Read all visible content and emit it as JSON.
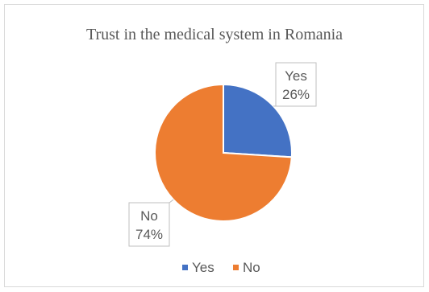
{
  "chart_data": {
    "type": "pie",
    "title": "Trust in the medical system in Romania",
    "categories": [
      "Yes",
      "No"
    ],
    "values": [
      26,
      74
    ],
    "data_labels": [
      {
        "category": "Yes",
        "value": "26%"
      },
      {
        "category": "No",
        "value": "74%"
      }
    ],
    "colors": [
      "#4472c4",
      "#ed7d31"
    ],
    "legend": {
      "position": "bottom",
      "entries": [
        "Yes",
        "No"
      ]
    }
  }
}
